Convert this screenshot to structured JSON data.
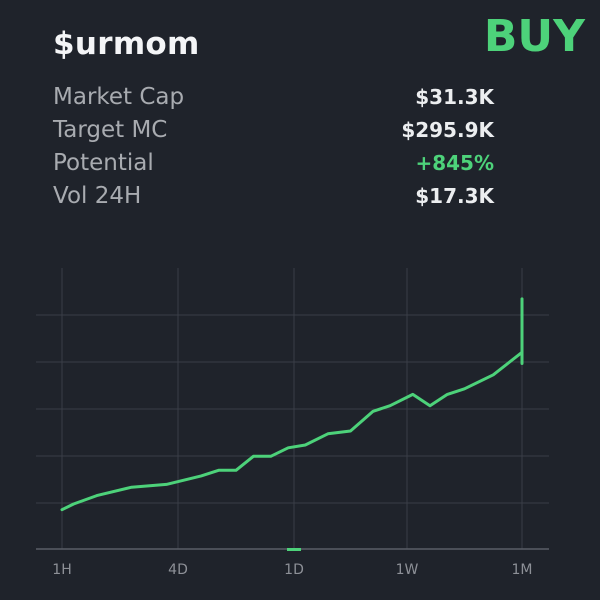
{
  "token": {
    "ticker": "$urmom",
    "signal": "BUY"
  },
  "stats": [
    {
      "label": "Market Cap",
      "value": "$31.3K",
      "tone": "neutral"
    },
    {
      "label": "Target MC",
      "value": "$295.9K",
      "tone": "neutral"
    },
    {
      "label": "Potential",
      "value": "+845%",
      "tone": "positive"
    },
    {
      "label": "Vol 24H",
      "value": "$17.3K",
      "tone": "neutral"
    }
  ],
  "colors": {
    "background": "#1f232b",
    "accent": "#4dd27a",
    "grid": "#3a3e47",
    "tick_label": "#8d9097"
  },
  "chart_data": {
    "type": "line",
    "grid": true,
    "x_ticks": [
      "1H",
      "4D",
      "1D",
      "1W",
      "1M"
    ],
    "selected_tick": "1D",
    "ylim": [
      0,
      100
    ],
    "series": [
      {
        "points": [
          [
            0.0,
            14
          ],
          [
            0.1,
            16
          ],
          [
            0.3,
            19
          ],
          [
            0.6,
            22
          ],
          [
            0.9,
            23
          ],
          [
            1.2,
            26
          ],
          [
            1.35,
            28
          ],
          [
            1.5,
            28
          ],
          [
            1.65,
            33
          ],
          [
            1.8,
            33
          ],
          [
            1.95,
            36
          ],
          [
            2.1,
            37
          ],
          [
            2.3,
            41
          ],
          [
            2.5,
            42
          ],
          [
            2.7,
            49
          ],
          [
            2.85,
            51
          ],
          [
            3.05,
            55
          ],
          [
            3.2,
            51
          ],
          [
            3.35,
            55
          ],
          [
            3.5,
            57
          ],
          [
            3.75,
            62
          ],
          [
            4.0,
            70
          ],
          [
            4.25,
            66
          ],
          [
            4.5,
            68
          ],
          [
            4.7,
            69
          ],
          [
            5.0,
            89
          ],
          [
            5.3,
            75
          ],
          [
            5.5,
            77
          ],
          [
            5.7,
            81
          ]
        ]
      }
    ]
  }
}
